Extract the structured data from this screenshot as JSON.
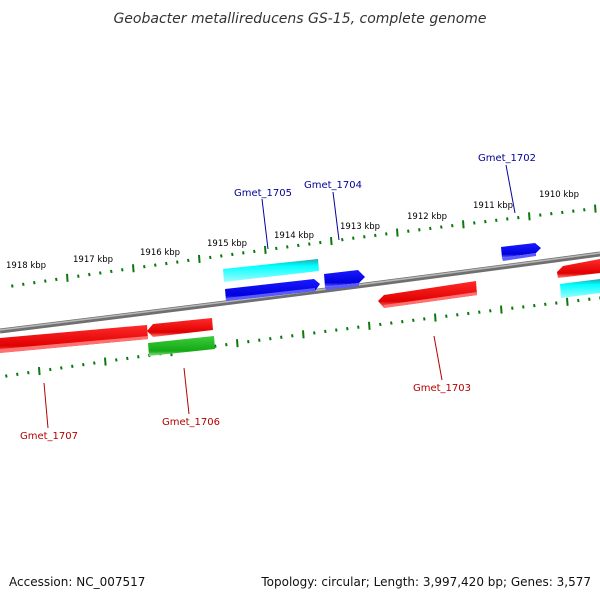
{
  "title": "Geobacter metallireducens GS-15, complete genome",
  "ticks": [
    "1918 kbp",
    "1917 kbp",
    "1916 kbp",
    "1915 kbp",
    "1914 kbp",
    "1913 kbp",
    "1912 kbp",
    "1911 kbp",
    "1910 kbp"
  ],
  "genes": [
    {
      "name": "Gmet_1702",
      "strand": "forward",
      "color": "blue"
    },
    {
      "name": "Gmet_1703",
      "strand": "reverse",
      "color": "red"
    },
    {
      "name": "Gmet_1704",
      "strand": "forward",
      "color": "blue"
    },
    {
      "name": "Gmet_1705",
      "strand": "forward",
      "color": "cyan"
    },
    {
      "name": "Gmet_1706",
      "strand": "reverse",
      "color": "green"
    },
    {
      "name": "Gmet_1707",
      "strand": "reverse",
      "color": "red"
    }
  ],
  "colors": {
    "forward_label": "#00009a",
    "reverse_label": "#b40000",
    "red": "#ff0000",
    "blue": "#0000ee",
    "cyan": "#00ffff",
    "green": "#22bb22",
    "ticks": "#0a7a0a",
    "backbone": "#8a8a8a"
  },
  "footer": {
    "accession": "Accession: NC_007517",
    "summary": "Topology: circular; Length: 3,997,420 bp; Genes: 3,577"
  }
}
